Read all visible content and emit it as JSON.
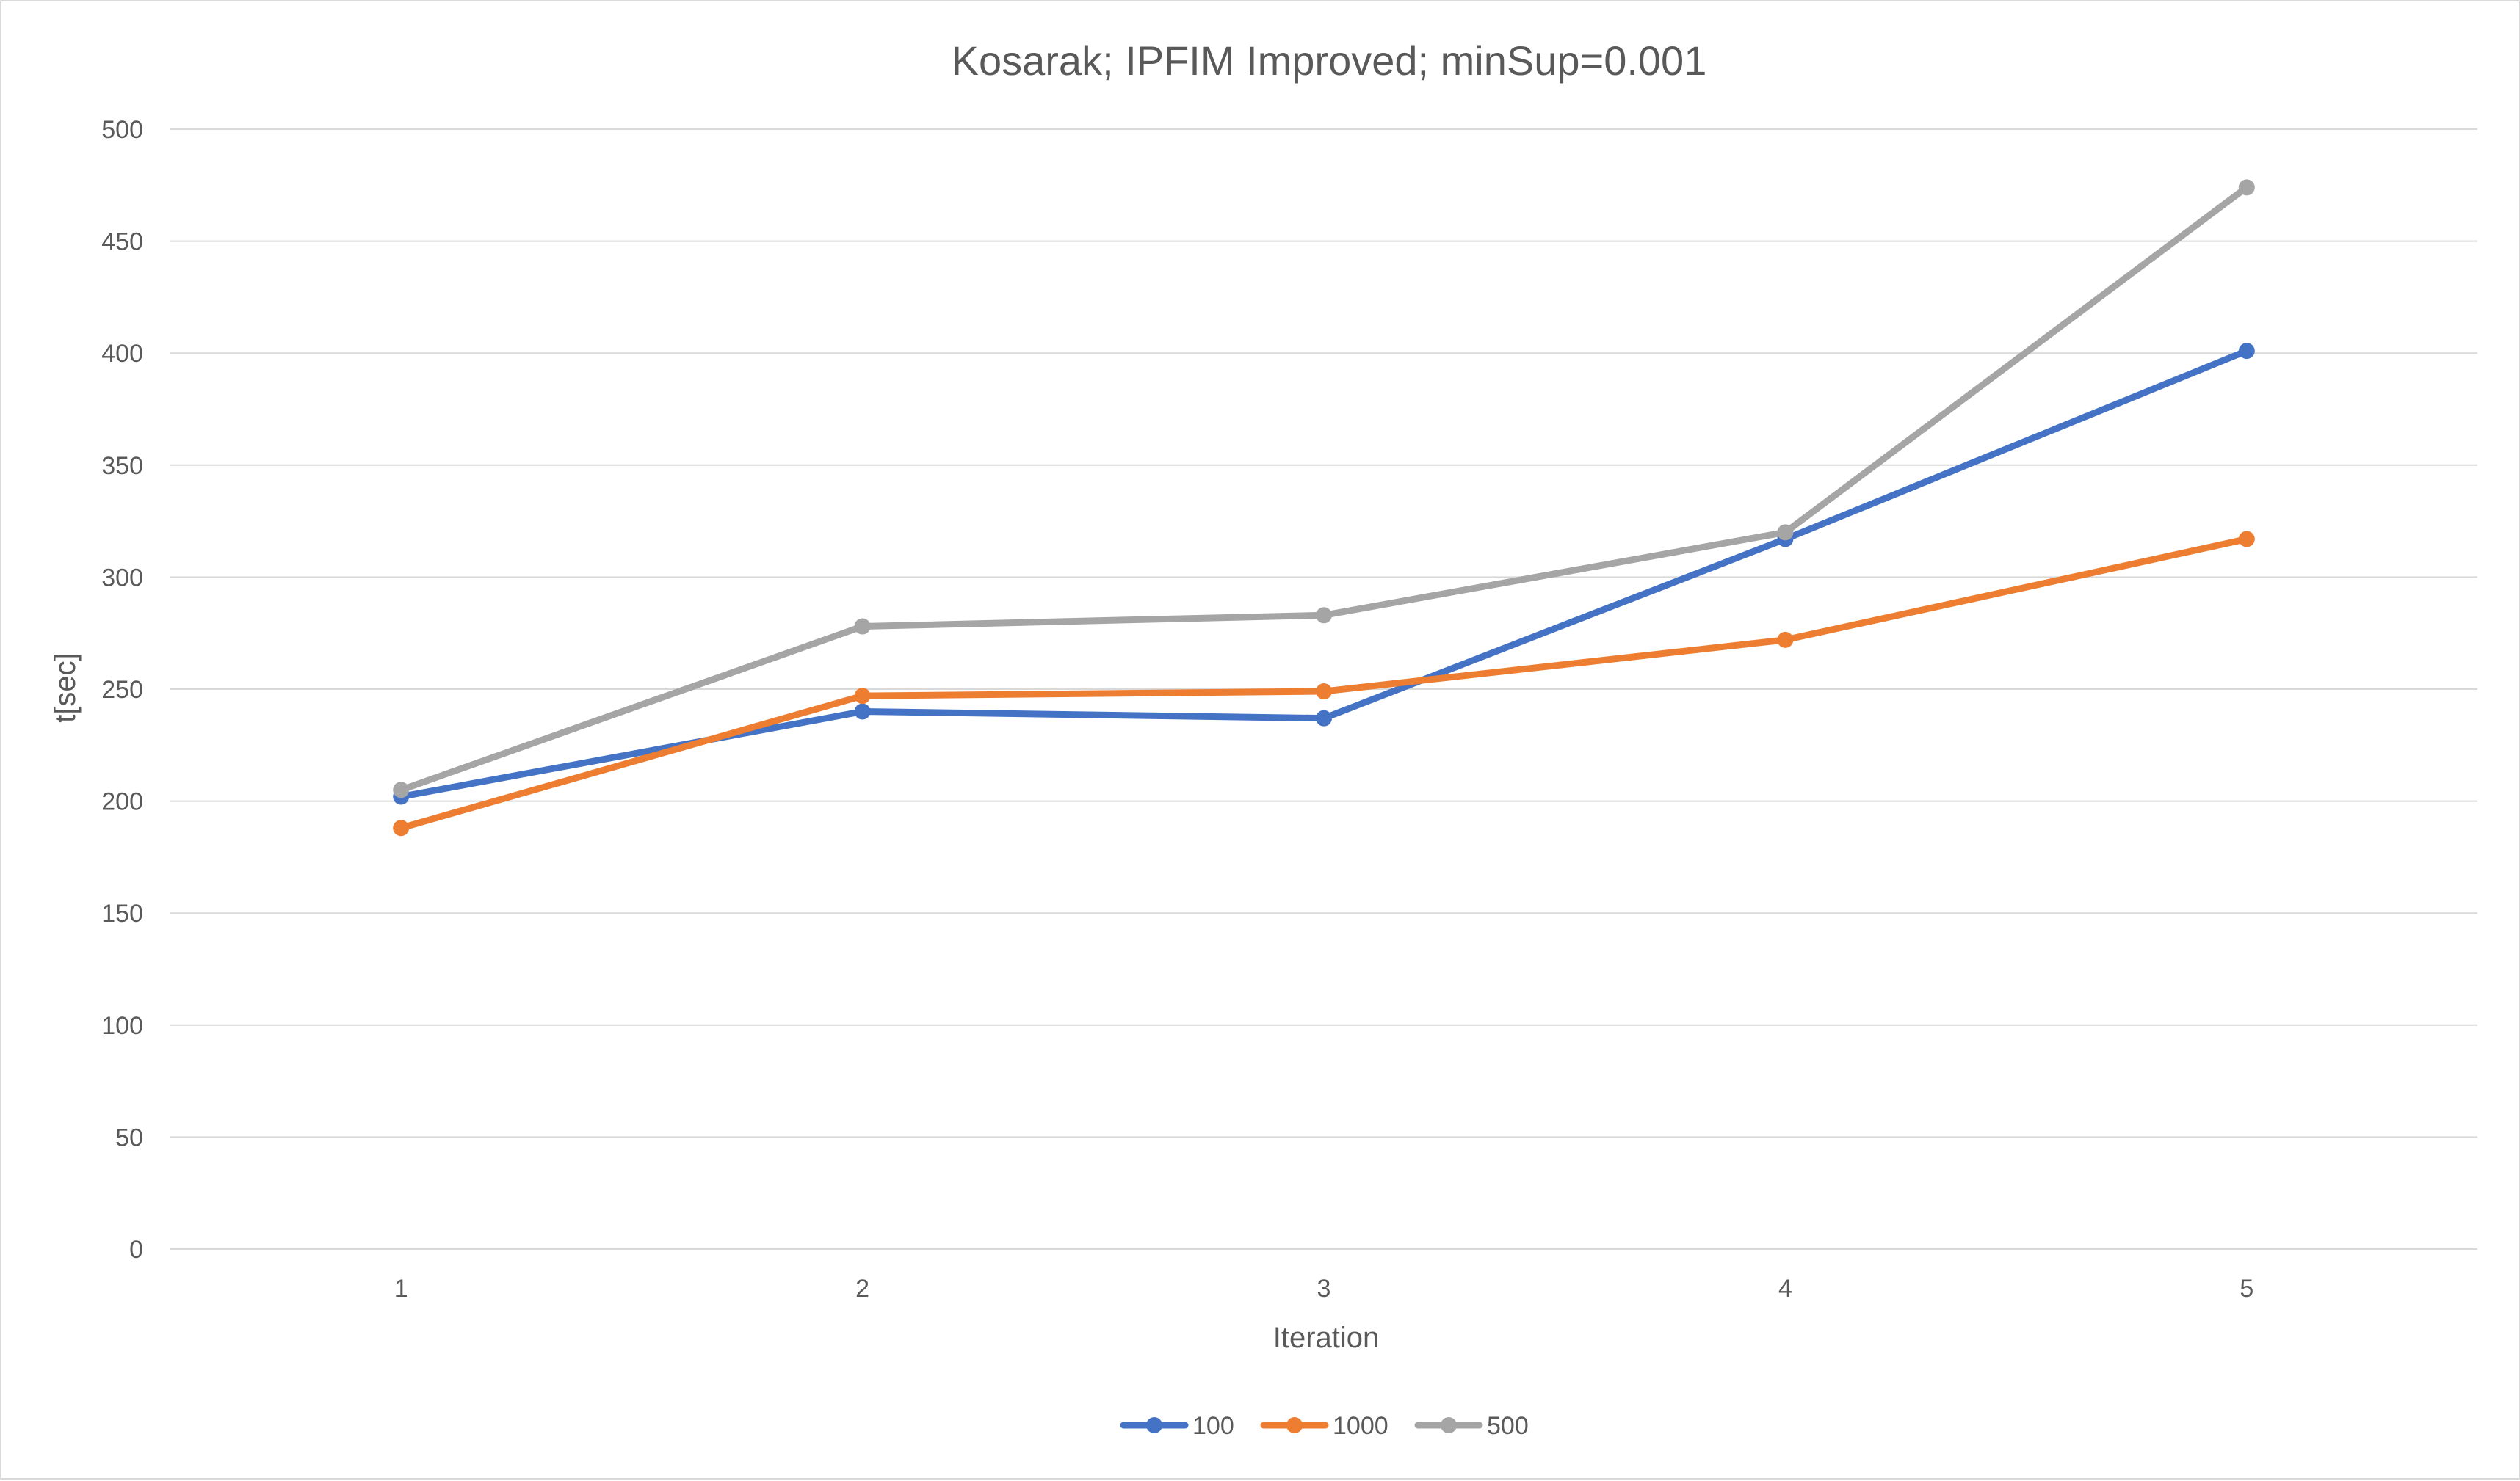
{
  "chart_data": {
    "type": "line",
    "title": "Kosarak; IPFIM Improved; minSup=0.001",
    "xlabel": "Iteration",
    "ylabel": "t[sec]",
    "categories": [
      "1",
      "2",
      "3",
      "4",
      "5"
    ],
    "ylim": [
      0,
      500
    ],
    "yticks": [
      0,
      50,
      100,
      150,
      200,
      250,
      300,
      350,
      400,
      450,
      500
    ],
    "grid": true,
    "legend_position": "bottom",
    "series": [
      {
        "name": "100",
        "color": "#4472C4",
        "values": [
          202,
          240,
          237,
          317,
          401
        ]
      },
      {
        "name": "1000",
        "color": "#ED7D31",
        "values": [
          188,
          247,
          249,
          272,
          317
        ]
      },
      {
        "name": "500",
        "color": "#A5A5A5",
        "values": [
          205,
          278,
          283,
          320,
          474
        ]
      }
    ]
  }
}
